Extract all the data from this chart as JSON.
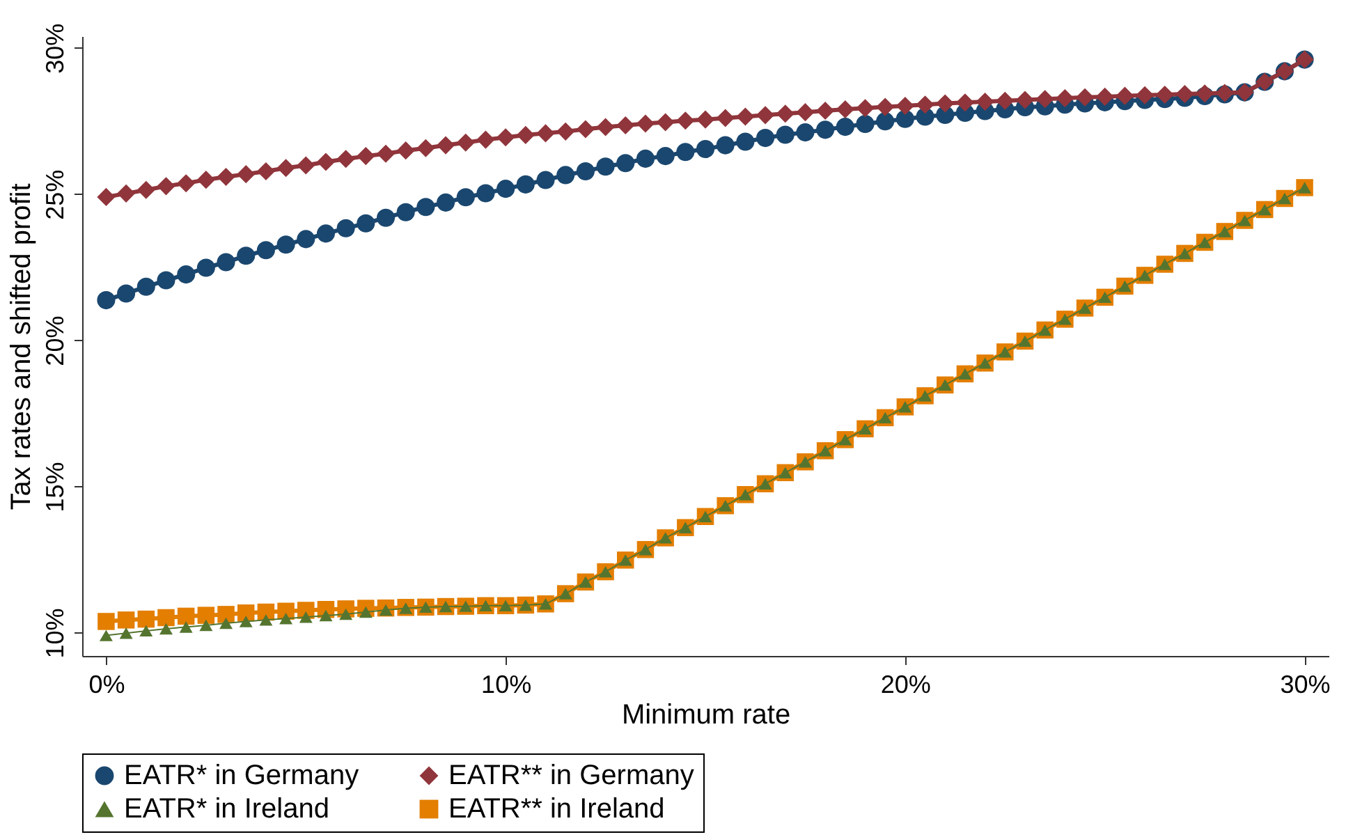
{
  "chart_data": {
    "type": "line",
    "xlabel": "Minimum rate",
    "ylabel": "Tax rates and shifted profit",
    "x": [
      0,
      0.5,
      1,
      1.5,
      2,
      2.5,
      3,
      3.5,
      4,
      4.5,
      5,
      5.5,
      6,
      6.5,
      7,
      7.5,
      8,
      8.5,
      9,
      9.5,
      10,
      10.5,
      11,
      11.5,
      12,
      12.5,
      13,
      13.5,
      14,
      14.5,
      15,
      15.5,
      16,
      16.5,
      17,
      17.5,
      18,
      18.5,
      19,
      19.5,
      20,
      20.5,
      21,
      21.5,
      22,
      22.5,
      23,
      23.5,
      24,
      24.5,
      25,
      25.5,
      26,
      26.5,
      27,
      27.5,
      28,
      28.5,
      29,
      29.5,
      30
    ],
    "series": [
      {
        "name": "EATR* in Germany",
        "color": "#1a476f",
        "marker": "circle",
        "values": [
          21.37,
          21.6,
          21.83,
          22.05,
          22.25,
          22.48,
          22.67,
          22.89,
          23.08,
          23.27,
          23.46,
          23.65,
          23.83,
          24.0,
          24.19,
          24.38,
          24.56,
          24.71,
          24.89,
          25.03,
          25.18,
          25.33,
          25.48,
          25.65,
          25.78,
          25.94,
          26.06,
          26.21,
          26.3,
          26.44,
          26.54,
          26.67,
          26.79,
          26.92,
          27.03,
          27.11,
          27.2,
          27.3,
          27.4,
          27.49,
          27.57,
          27.65,
          27.71,
          27.78,
          27.84,
          27.9,
          27.97,
          28.0,
          28.06,
          28.1,
          28.14,
          28.18,
          28.22,
          28.25,
          28.29,
          28.35,
          28.41,
          28.48,
          28.84,
          29.2,
          29.6
        ]
      },
      {
        "name": "EATR** in Germany",
        "color": "#90353b",
        "marker": "diamond",
        "values": [
          24.9,
          25.02,
          25.14,
          25.27,
          25.37,
          25.49,
          25.59,
          25.68,
          25.78,
          25.89,
          25.98,
          26.1,
          26.2,
          26.3,
          26.38,
          26.49,
          26.57,
          26.67,
          26.76,
          26.86,
          26.94,
          27.02,
          27.08,
          27.14,
          27.22,
          27.29,
          27.35,
          27.41,
          27.46,
          27.51,
          27.55,
          27.6,
          27.65,
          27.7,
          27.75,
          27.8,
          27.85,
          27.9,
          27.94,
          27.98,
          28.02,
          28.06,
          28.1,
          28.13,
          28.16,
          28.19,
          28.22,
          28.25,
          28.28,
          28.31,
          28.33,
          28.36,
          28.38,
          28.4,
          28.42,
          28.44,
          28.46,
          28.48,
          28.84,
          29.2,
          29.6
        ]
      },
      {
        "name": "EATR* in Ireland",
        "color": "#55752f",
        "marker": "triangle",
        "values": [
          9.9,
          9.98,
          10.06,
          10.13,
          10.19,
          10.25,
          10.32,
          10.38,
          10.43,
          10.48,
          10.53,
          10.58,
          10.63,
          10.7,
          10.77,
          10.83,
          10.87,
          10.89,
          10.9,
          10.92,
          10.92,
          10.94,
          10.98,
          11.33,
          11.73,
          12.08,
          12.48,
          12.84,
          13.24,
          13.59,
          13.97,
          14.34,
          14.72,
          15.09,
          15.47,
          15.84,
          16.22,
          16.6,
          16.97,
          17.35,
          17.72,
          18.1,
          18.47,
          18.85,
          19.22,
          19.6,
          19.97,
          20.35,
          20.72,
          21.1,
          21.47,
          21.85,
          22.22,
          22.6,
          22.97,
          23.35,
          23.72,
          24.1,
          24.47,
          24.85,
          25.22
        ]
      },
      {
        "name": "EATR** in Ireland",
        "color": "#e37e00",
        "marker": "square",
        "values": [
          10.38,
          10.43,
          10.46,
          10.51,
          10.56,
          10.59,
          10.62,
          10.67,
          10.7,
          10.73,
          10.76,
          10.79,
          10.81,
          10.83,
          10.84,
          10.86,
          10.87,
          10.89,
          10.9,
          10.92,
          10.92,
          10.94,
          10.98,
          11.33,
          11.73,
          12.08,
          12.48,
          12.84,
          13.24,
          13.59,
          13.97,
          14.34,
          14.72,
          15.09,
          15.47,
          15.84,
          16.22,
          16.6,
          16.97,
          17.35,
          17.72,
          18.1,
          18.47,
          18.85,
          19.22,
          19.6,
          19.97,
          20.35,
          20.72,
          21.1,
          21.47,
          21.85,
          22.22,
          22.6,
          22.97,
          23.35,
          23.72,
          24.1,
          24.47,
          24.85,
          25.22
        ]
      }
    ],
    "xlim": [
      -0.6,
      30.6
    ],
    "ylim": [
      9.2,
      30.4
    ],
    "xticks": [
      {
        "value": 0,
        "label": "0%"
      },
      {
        "value": 10,
        "label": "10%"
      },
      {
        "value": 20,
        "label": "20%"
      },
      {
        "value": 30,
        "label": "30%"
      }
    ],
    "yticks": [
      {
        "value": 10,
        "label": "10%"
      },
      {
        "value": 15,
        "label": "15%"
      },
      {
        "value": 20,
        "label": "20%"
      },
      {
        "value": 25,
        "label": "25%"
      },
      {
        "value": 30,
        "label": "30%"
      }
    ],
    "grid": false,
    "legend": "bottom",
    "line_style": "solid"
  }
}
